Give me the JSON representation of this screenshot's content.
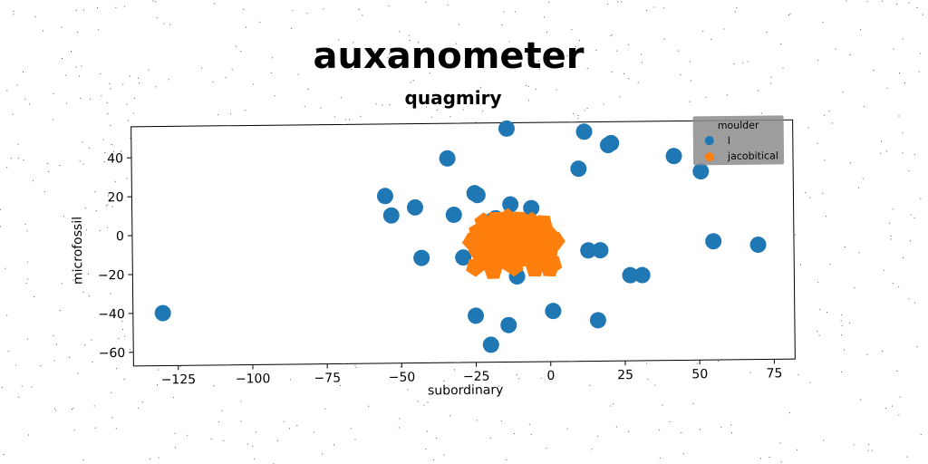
{
  "chart_data": {
    "type": "scatter",
    "title": "auxanometer",
    "subtitle": "quagmiry",
    "xlabel": "subordinary",
    "ylabel": "microfossil",
    "xlim": [
      -140,
      82
    ],
    "ylim": [
      -67,
      56
    ],
    "xticks": [
      -125,
      -100,
      -75,
      -50,
      -25,
      0,
      25,
      50,
      75
    ],
    "yticks": [
      -60,
      -40,
      -20,
      0,
      20,
      40
    ],
    "grid": false,
    "legend": {
      "title": "moulder",
      "placement": "top-right"
    },
    "series": [
      {
        "name": "l",
        "color": "#1f77b4",
        "x": [
          -14,
          12,
          21,
          20,
          42,
          51,
          10,
          -34,
          -55,
          -45,
          -53,
          -32,
          -25,
          -24,
          -13,
          -6,
          -19,
          -10,
          -29,
          -11,
          13,
          17,
          27,
          31,
          55,
          70,
          -43,
          -130,
          -25,
          -14,
          1,
          16,
          -20,
          -18,
          -6
        ],
        "y": [
          53,
          51,
          45,
          44,
          38,
          30,
          32,
          38,
          19,
          13,
          9,
          9,
          20,
          19,
          14,
          12,
          6,
          4,
          -13,
          -23,
          -10,
          -10,
          -23,
          -23,
          -6,
          -8,
          -13,
          -40,
          -43,
          -48,
          -41,
          -46,
          -58,
          7,
          1
        ]
      },
      {
        "name": "jacobitical",
        "color": "#ff7f0e",
        "x": [
          -22,
          -18,
          -14,
          -10,
          -6,
          -2,
          -24,
          -20,
          -16,
          -12,
          -8,
          -4,
          0,
          -26,
          -22,
          -18,
          -14,
          -10,
          -6,
          -2,
          2,
          -24,
          -20,
          -16,
          -12,
          -8,
          -4,
          0,
          -22,
          -18,
          -14,
          -10,
          -6,
          -2,
          -25,
          -19,
          -12,
          -5,
          1,
          0
        ],
        "y": [
          5,
          6,
          7,
          6,
          5,
          4,
          0,
          1,
          2,
          1,
          0,
          -1,
          -2,
          -5,
          -4,
          -5,
          -6,
          -5,
          -4,
          -3,
          -5,
          -10,
          -9,
          -10,
          -11,
          -9,
          -8,
          -10,
          -14,
          -15,
          -16,
          -14,
          -13,
          -15,
          -18,
          -20,
          -18,
          -19,
          -17,
          -19
        ]
      }
    ]
  }
}
